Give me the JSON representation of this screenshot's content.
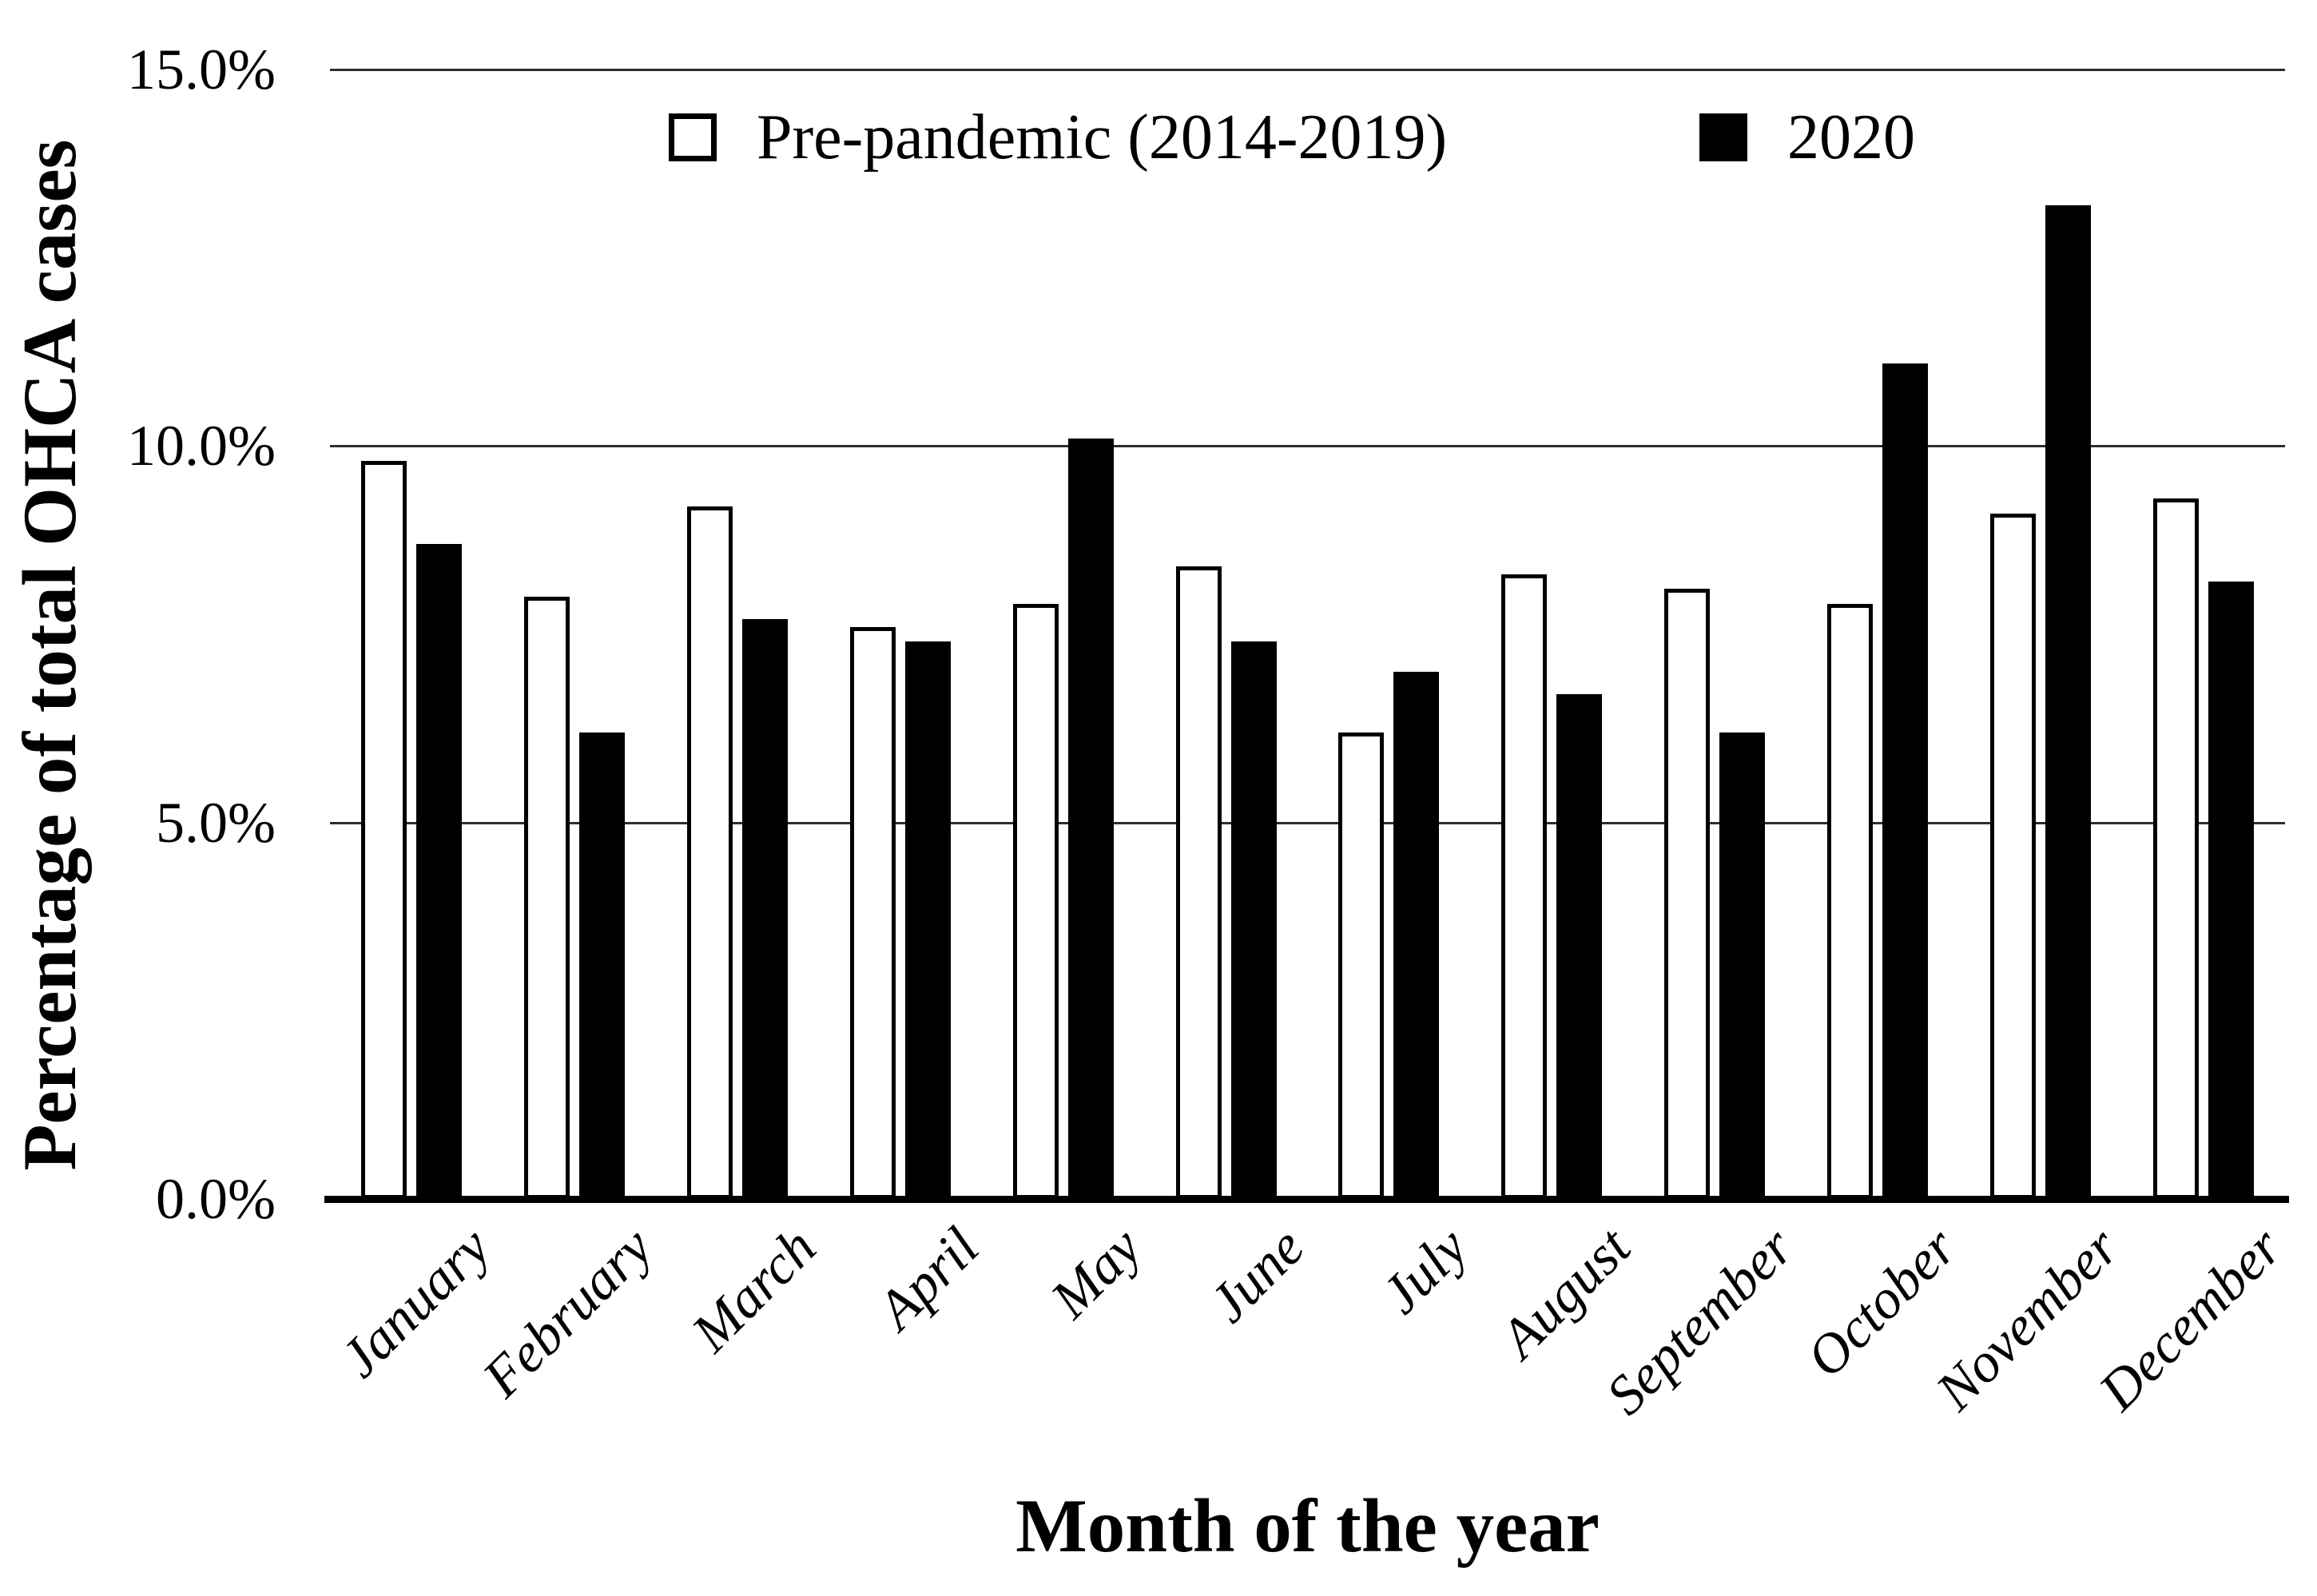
{
  "figure": {
    "y_axis_title": "Percentage of total OHCA cases",
    "x_axis_title": "Month of the year",
    "y_ticks": [
      {
        "label": "15.0%",
        "value": 15
      },
      {
        "label": "10.0%",
        "value": 10
      },
      {
        "label": "5.0%",
        "value": 5
      },
      {
        "label": "0.0%",
        "value": 0
      }
    ],
    "colors": {
      "bar_outline": "#000000",
      "pre_pandemic_fill": "#ffffff",
      "year2020_fill": "#000000",
      "gridline": "#2e2e2e"
    }
  },
  "chart_data": {
    "type": "bar",
    "title": "",
    "xlabel": "Month of the year",
    "ylabel": "Percentage of total OHCA cases",
    "ylim": [
      0,
      15
    ],
    "ytick_values": [
      0,
      5,
      10,
      15
    ],
    "ytick_labels": [
      "0.0%",
      "5.0%",
      "10.0%",
      "15.0%"
    ],
    "grid": true,
    "legend_position": "top-inside",
    "categories": [
      "January",
      "February",
      "March",
      "April",
      "May",
      "June",
      "July",
      "August",
      "September",
      "October",
      "November",
      "December"
    ],
    "series": [
      {
        "name": "Pre-pandemic (2014-2019)",
        "fill": "#ffffff",
        "values": [
          9.8,
          8.0,
          9.2,
          7.6,
          7.9,
          8.4,
          6.2,
          8.3,
          8.1,
          7.9,
          9.1,
          9.3
        ],
        "unit": "%"
      },
      {
        "name": "2020",
        "fill": "#000000",
        "values": [
          8.7,
          6.2,
          7.7,
          7.4,
          10.1,
          7.4,
          7.0,
          6.7,
          6.2,
          11.1,
          13.2,
          8.2
        ],
        "unit": "%"
      }
    ]
  }
}
